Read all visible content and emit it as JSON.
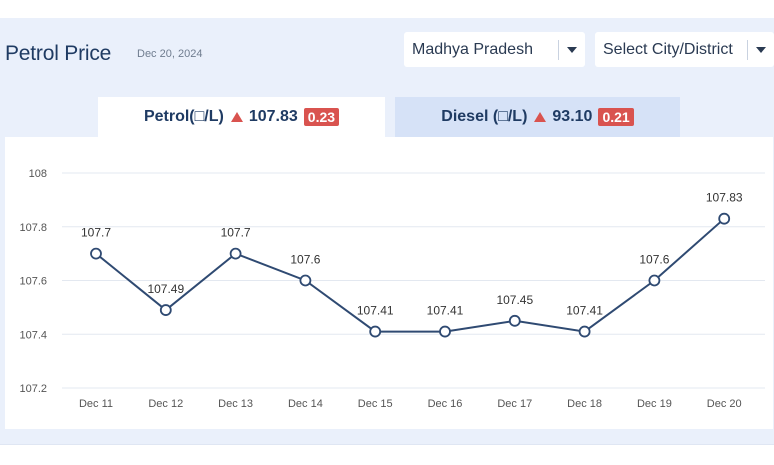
{
  "header": {
    "title": "Petrol Price",
    "date": "Dec 20, 2024"
  },
  "selects": {
    "state": "Madhya Pradesh",
    "city": "Select City/District"
  },
  "tabs": {
    "petrol": {
      "label": "Petrol(□/L)",
      "price": "107.83",
      "change": "0.23"
    },
    "diesel": {
      "label": "Diesel (□/L)",
      "price": "93.10",
      "change": "0.21"
    }
  },
  "colors": {
    "line": "#2f4a72",
    "up_badge": "#d9534f",
    "grid": "#e3e8f0",
    "tick": "#555555"
  },
  "chart_data": {
    "type": "line",
    "title": "",
    "xlabel": "",
    "ylabel": "",
    "categories": [
      "Dec 11",
      "Dec 12",
      "Dec 13",
      "Dec 14",
      "Dec 15",
      "Dec 16",
      "Dec 17",
      "Dec 18",
      "Dec 19",
      "Dec 20"
    ],
    "series": [
      {
        "values": [
          107.7,
          107.49,
          107.7,
          107.6,
          107.41,
          107.41,
          107.45,
          107.41,
          107.6,
          107.83
        ]
      }
    ],
    "data_labels": [
      "107.7",
      "107.49",
      "107.7",
      "107.6",
      "107.41",
      "107.41",
      "107.45",
      "107.41",
      "107.6",
      "107.83"
    ],
    "ylim": [
      107.2,
      108
    ],
    "yticks": [
      "107.2",
      "107.4",
      "107.6",
      "107.8",
      "108"
    ],
    "grid": true,
    "legend": "none"
  }
}
